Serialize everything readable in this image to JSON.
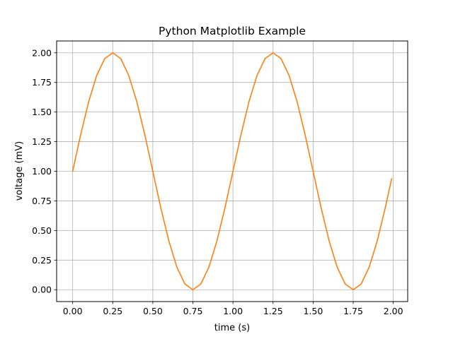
{
  "chart_data": {
    "type": "line",
    "title": "Python Matplotlib Example",
    "xlabel": "time (s)",
    "ylabel": "voltage (mV)",
    "xlim": [
      -0.1,
      2.09
    ],
    "ylim": [
      -0.1,
      2.1
    ],
    "x_ticks": [
      "0.00",
      "0.25",
      "0.50",
      "0.75",
      "1.00",
      "1.25",
      "1.50",
      "1.75",
      "2.00"
    ],
    "y_ticks": [
      "0.00",
      "0.25",
      "0.50",
      "0.75",
      "1.00",
      "1.25",
      "1.50",
      "1.75",
      "2.00"
    ],
    "grid": true,
    "legend": "none",
    "series": [
      {
        "color": "#ff7f0e",
        "x": [
          0.0,
          0.05,
          0.1,
          0.15,
          0.2,
          0.25,
          0.3,
          0.35,
          0.4,
          0.45,
          0.5,
          0.55,
          0.6,
          0.65,
          0.7,
          0.75,
          0.8,
          0.85,
          0.9,
          0.95,
          1.0,
          1.05,
          1.1,
          1.15,
          1.2,
          1.25,
          1.3,
          1.35,
          1.4,
          1.45,
          1.5,
          1.55,
          1.6,
          1.65,
          1.7,
          1.75,
          1.8,
          1.85,
          1.9,
          1.95,
          1.99
        ],
        "y": [
          1.0,
          1.309,
          1.588,
          1.809,
          1.951,
          2.0,
          1.951,
          1.809,
          1.588,
          1.309,
          1.0,
          0.691,
          0.412,
          0.191,
          0.049,
          0.0,
          0.049,
          0.191,
          0.412,
          0.691,
          1.0,
          1.309,
          1.588,
          1.809,
          1.951,
          2.0,
          1.951,
          1.809,
          1.588,
          1.309,
          1.0,
          0.691,
          0.412,
          0.191,
          0.049,
          0.0,
          0.049,
          0.191,
          0.412,
          0.691,
          0.937
        ]
      }
    ]
  }
}
